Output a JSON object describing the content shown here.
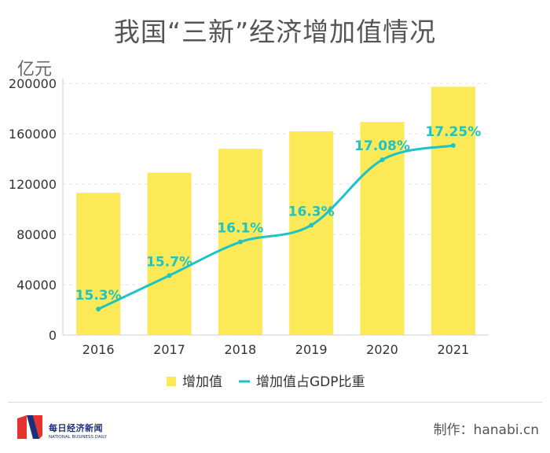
{
  "title": "我国“三新”经济增加值情况",
  "unit": "亿元",
  "credit": "制作：hanabi.cn",
  "logo": {
    "name_cn": "每日经济新闻",
    "name_en": "NATIONAL BUSINESS DAILY"
  },
  "colors": {
    "bar": "#fbe957",
    "line": "#1ec3c6",
    "grid": "#e6e6e6",
    "logo_red": "#e8322f",
    "logo_blue": "#1c2f7a"
  },
  "chart_data": {
    "type": "bar",
    "categories": [
      "2016",
      "2017",
      "2018",
      "2019",
      "2020",
      "2021"
    ],
    "series": [
      {
        "name": "增加值",
        "type": "bar",
        "values": [
          113000,
          129000,
          148000,
          161900,
          169300,
          197300
        ]
      },
      {
        "name": "增加值占GDP比重",
        "type": "line",
        "values": [
          15.3,
          15.7,
          16.1,
          16.3,
          17.08,
          17.25
        ],
        "labels": [
          "15.3%",
          "15.7%",
          "16.1%",
          "16.3%",
          "17.08%",
          "17.25%"
        ]
      }
    ],
    "yticks": [
      "200000",
      "160000",
      "120000",
      "80000",
      "40000",
      "0"
    ],
    "ylim": [
      0,
      200000
    ],
    "grid": true,
    "legend_position": "bottom"
  }
}
